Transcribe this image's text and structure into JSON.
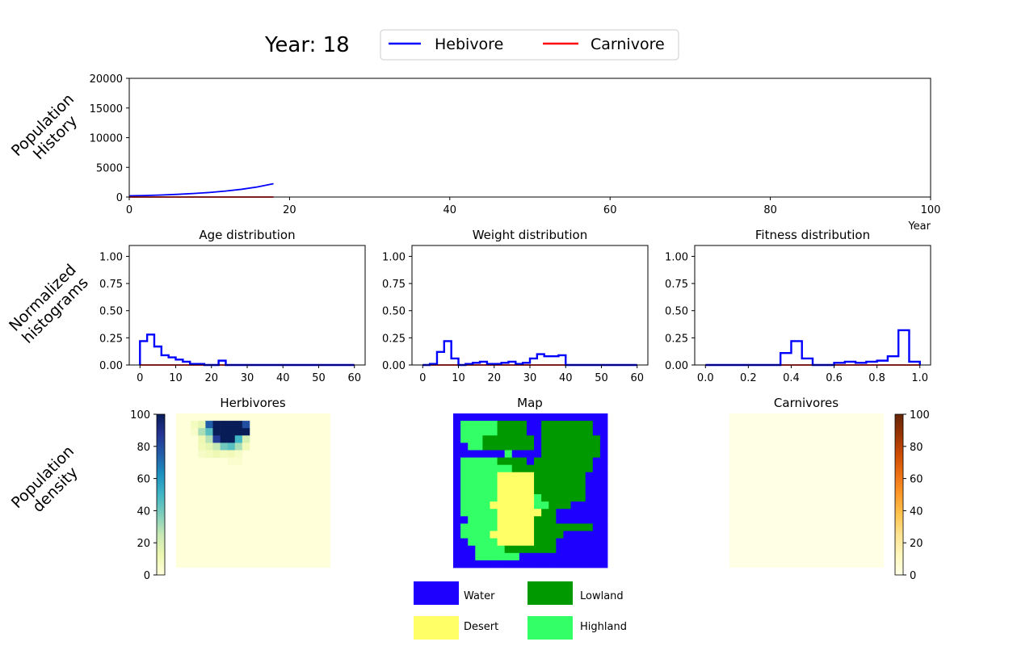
{
  "header": {
    "year_label": "Year: 18",
    "legend": [
      {
        "label": "Hebivore",
        "color": "#0000ff"
      },
      {
        "label": "Carnivore",
        "color": "#ff0000"
      }
    ]
  },
  "row_labels": {
    "population_history": [
      "Population",
      "History"
    ],
    "histograms": [
      "Normalized",
      "histograms"
    ],
    "density": [
      "Population",
      "density"
    ]
  },
  "colors": {
    "herbivore": "#0000ff",
    "carnivore": "#ff0000",
    "water": "#1e00ff",
    "lowland": "#009900",
    "desert": "#ffff66",
    "highland": "#33ff66"
  },
  "chart_data": [
    {
      "id": "population_history",
      "type": "line",
      "xlabel": "Year",
      "ylabel": "",
      "xlim": [
        0,
        100
      ],
      "ylim": [
        0,
        20000
      ],
      "xticks": [
        "0",
        "20",
        "40",
        "60",
        "80",
        "100"
      ],
      "yticks": [
        "0",
        "5000",
        "10000",
        "15000",
        "20000"
      ],
      "x": [
        0,
        2,
        4,
        6,
        8,
        10,
        12,
        14,
        16,
        18
      ],
      "series": [
        {
          "name": "Hebivore",
          "color": "#0000ff",
          "values": [
            200,
            260,
            340,
            450,
            590,
            770,
            1000,
            1300,
            1700,
            2250
          ]
        },
        {
          "name": "Carnivore",
          "color": "#ff0000",
          "values": [
            0,
            0,
            0,
            0,
            0,
            0,
            0,
            0,
            0,
            0
          ]
        }
      ]
    },
    {
      "id": "age_distribution",
      "type": "step-histogram",
      "title": "Age distribution",
      "xlim": [
        0,
        60
      ],
      "ylim": [
        0,
        1.1
      ],
      "xticks": [
        "0",
        "10",
        "20",
        "30",
        "40",
        "50",
        "60"
      ],
      "yticks": [
        "0.00",
        "0.25",
        "0.50",
        "0.75",
        "1.00"
      ],
      "bin_edges": [
        0,
        2,
        4,
        6,
        8,
        10,
        12,
        14,
        16,
        18,
        20,
        22,
        24,
        26,
        28,
        30,
        32,
        34,
        36,
        38,
        40,
        42,
        44,
        46,
        48,
        50,
        52,
        54,
        56,
        58,
        60
      ],
      "series": [
        {
          "name": "Hebivore",
          "color": "#0000ff",
          "values": [
            0.22,
            0.28,
            0.17,
            0.09,
            0.07,
            0.05,
            0.03,
            0.01,
            0.01,
            0,
            0,
            0.04,
            0,
            0,
            0,
            0,
            0,
            0,
            0,
            0,
            0,
            0,
            0,
            0,
            0,
            0,
            0,
            0,
            0,
            0
          ]
        },
        {
          "name": "Carnivore",
          "color": "#ff0000",
          "values": [
            0,
            0,
            0,
            0,
            0,
            0,
            0,
            0,
            0,
            0,
            0,
            0,
            0,
            0,
            0,
            0,
            0,
            0,
            0,
            0,
            0,
            0,
            0,
            0,
            0,
            0,
            0,
            0,
            0,
            0
          ]
        }
      ]
    },
    {
      "id": "weight_distribution",
      "type": "step-histogram",
      "title": "Weight distribution",
      "xlim": [
        0,
        60
      ],
      "ylim": [
        0,
        1.1
      ],
      "xticks": [
        "0",
        "10",
        "20",
        "30",
        "40",
        "50",
        "60"
      ],
      "yticks": [
        "0.00",
        "0.25",
        "0.50",
        "0.75",
        "1.00"
      ],
      "bin_edges": [
        0,
        2,
        4,
        6,
        8,
        10,
        12,
        14,
        16,
        18,
        20,
        22,
        24,
        26,
        28,
        30,
        32,
        34,
        36,
        38,
        40,
        42,
        44,
        46,
        48,
        50,
        52,
        54,
        56,
        58,
        60
      ],
      "series": [
        {
          "name": "Hebivore",
          "color": "#0000ff",
          "values": [
            0,
            0.01,
            0.12,
            0.22,
            0.06,
            0,
            0.01,
            0.02,
            0.03,
            0.01,
            0.01,
            0.02,
            0.03,
            0.01,
            0.02,
            0.06,
            0.1,
            0.08,
            0.08,
            0.09,
            0,
            0,
            0,
            0,
            0,
            0,
            0,
            0,
            0,
            0
          ]
        },
        {
          "name": "Carnivore",
          "color": "#ff0000",
          "values": [
            0,
            0,
            0,
            0,
            0,
            0,
            0,
            0,
            0,
            0,
            0,
            0,
            0,
            0,
            0,
            0,
            0,
            0,
            0,
            0,
            0,
            0,
            0,
            0,
            0,
            0,
            0,
            0,
            0,
            0
          ]
        }
      ]
    },
    {
      "id": "fitness_distribution",
      "type": "step-histogram",
      "title": "Fitness distribution",
      "xlim": [
        0,
        1
      ],
      "ylim": [
        0,
        1.1
      ],
      "xticks": [
        "0.0",
        "0.2",
        "0.4",
        "0.6",
        "0.8",
        "1.0"
      ],
      "yticks": [
        "0.00",
        "0.25",
        "0.50",
        "0.75",
        "1.00"
      ],
      "bin_edges": [
        0,
        0.05,
        0.1,
        0.15,
        0.2,
        0.25,
        0.3,
        0.35,
        0.4,
        0.45,
        0.5,
        0.55,
        0.6,
        0.65,
        0.7,
        0.75,
        0.8,
        0.85,
        0.9,
        0.95,
        1.0
      ],
      "series": [
        {
          "name": "Hebivore",
          "color": "#0000ff",
          "values": [
            0,
            0,
            0,
            0,
            0,
            0,
            0,
            0.11,
            0.22,
            0.06,
            0,
            0,
            0.02,
            0.03,
            0.02,
            0.03,
            0.04,
            0.08,
            0.32,
            0.03
          ]
        },
        {
          "name": "Carnivore",
          "color": "#ff0000",
          "values": [
            0,
            0,
            0,
            0,
            0,
            0,
            0,
            0,
            0,
            0,
            0,
            0,
            0,
            0,
            0,
            0,
            0,
            0,
            0,
            0
          ]
        }
      ]
    },
    {
      "id": "herbivores_density",
      "type": "heatmap",
      "title": "Herbivores",
      "colormap": "YlGnBu",
      "vmin": 0,
      "vmax": 100,
      "colorbar_ticks": [
        "0",
        "20",
        "40",
        "60",
        "80",
        "100"
      ],
      "grid_size": [
        21,
        21
      ],
      "cells": [
        {
          "row": 1,
          "col": 2,
          "value": 8
        },
        {
          "row": 1,
          "col": 3,
          "value": 15
        },
        {
          "row": 1,
          "col": 4,
          "value": 75
        },
        {
          "row": 1,
          "col": 5,
          "value": 100
        },
        {
          "row": 1,
          "col": 6,
          "value": 100
        },
        {
          "row": 1,
          "col": 7,
          "value": 100
        },
        {
          "row": 1,
          "col": 8,
          "value": 100
        },
        {
          "row": 1,
          "col": 9,
          "value": 80
        },
        {
          "row": 2,
          "col": 2,
          "value": 5
        },
        {
          "row": 2,
          "col": 3,
          "value": 30
        },
        {
          "row": 2,
          "col": 4,
          "value": 45
        },
        {
          "row": 2,
          "col": 5,
          "value": 100
        },
        {
          "row": 2,
          "col": 6,
          "value": 100
        },
        {
          "row": 2,
          "col": 7,
          "value": 100
        },
        {
          "row": 2,
          "col": 8,
          "value": 100
        },
        {
          "row": 2,
          "col": 9,
          "value": 100
        },
        {
          "row": 3,
          "col": 3,
          "value": 12
        },
        {
          "row": 3,
          "col": 4,
          "value": 28
        },
        {
          "row": 3,
          "col": 5,
          "value": 85
        },
        {
          "row": 3,
          "col": 6,
          "value": 100
        },
        {
          "row": 3,
          "col": 7,
          "value": 100
        },
        {
          "row": 3,
          "col": 8,
          "value": 50
        },
        {
          "row": 3,
          "col": 9,
          "value": 20
        },
        {
          "row": 4,
          "col": 3,
          "value": 10
        },
        {
          "row": 4,
          "col": 4,
          "value": 15
        },
        {
          "row": 4,
          "col": 5,
          "value": 25
        },
        {
          "row": 4,
          "col": 6,
          "value": 40
        },
        {
          "row": 4,
          "col": 7,
          "value": 45
        },
        {
          "row": 4,
          "col": 8,
          "value": 30
        },
        {
          "row": 4,
          "col": 9,
          "value": 10
        },
        {
          "row": 5,
          "col": 3,
          "value": 6
        },
        {
          "row": 5,
          "col": 4,
          "value": 8
        },
        {
          "row": 5,
          "col": 5,
          "value": 12
        },
        {
          "row": 5,
          "col": 6,
          "value": 8
        },
        {
          "row": 5,
          "col": 7,
          "value": 10
        },
        {
          "row": 5,
          "col": 8,
          "value": 6
        },
        {
          "row": 6,
          "col": 7,
          "value": 3
        },
        {
          "row": 6,
          "col": 8,
          "value": 3
        }
      ]
    },
    {
      "id": "map",
      "type": "categorical-map",
      "title": "Map",
      "legend": [
        {
          "label": "Water",
          "key": "W"
        },
        {
          "label": "Lowland",
          "key": "L"
        },
        {
          "label": "Desert",
          "key": "D"
        },
        {
          "label": "Highland",
          "key": "H"
        }
      ],
      "grid": [
        "WWWWWWWWWWWWWWWWWWWWW",
        "WHHHHHLLLLWWLLLLLLLWW",
        "WHHHHHLLLLWWLLLLLLLWW",
        "WHHHLLLLLLLWLLLLLLLLW",
        "WWHHLLLLLLLWLLLLLLLLW",
        "WWWWWWWHWWWWLLLLLLLLW",
        "WHHHHHLLLLWLLLLLLLLWW",
        "WHHHHHHHLLLLLLLLLLLWW",
        "WHHHHHDDDDDLLLLLLLWWW",
        "WHHHHHDDDDDLLLLLLLWWW",
        "WHHHHHDDDDDLLLLLLLWWW",
        "WHHHHHDDDDDHLLLLLLWWW",
        "WHHHHDDDDDDHHLLLWWWWW",
        "WHHHHHDDDDDDLLWWWWWWW",
        "WWHHHHDDDDDLLLWWWWWWW",
        "WHHHHHDDDDDLLLLLLLLWW",
        "WHHHHDDDDDDLLLLWWWWWW",
        "WWHHHHDDDDDLLLWWWWWWW",
        "WWWHHHHLLLLLLLWWWWWWW",
        "WWWHHHHHHWWWWWWWWWWWW",
        "WWWWWWWWWWWWWWWWWWWWW"
      ]
    },
    {
      "id": "carnivores_density",
      "type": "heatmap",
      "title": "Carnivores",
      "colormap": "YlOrBr",
      "vmin": 0,
      "vmax": 100,
      "colorbar_ticks": [
        "0",
        "20",
        "40",
        "60",
        "80",
        "100"
      ],
      "grid_size": [
        21,
        21
      ],
      "cells": []
    }
  ]
}
